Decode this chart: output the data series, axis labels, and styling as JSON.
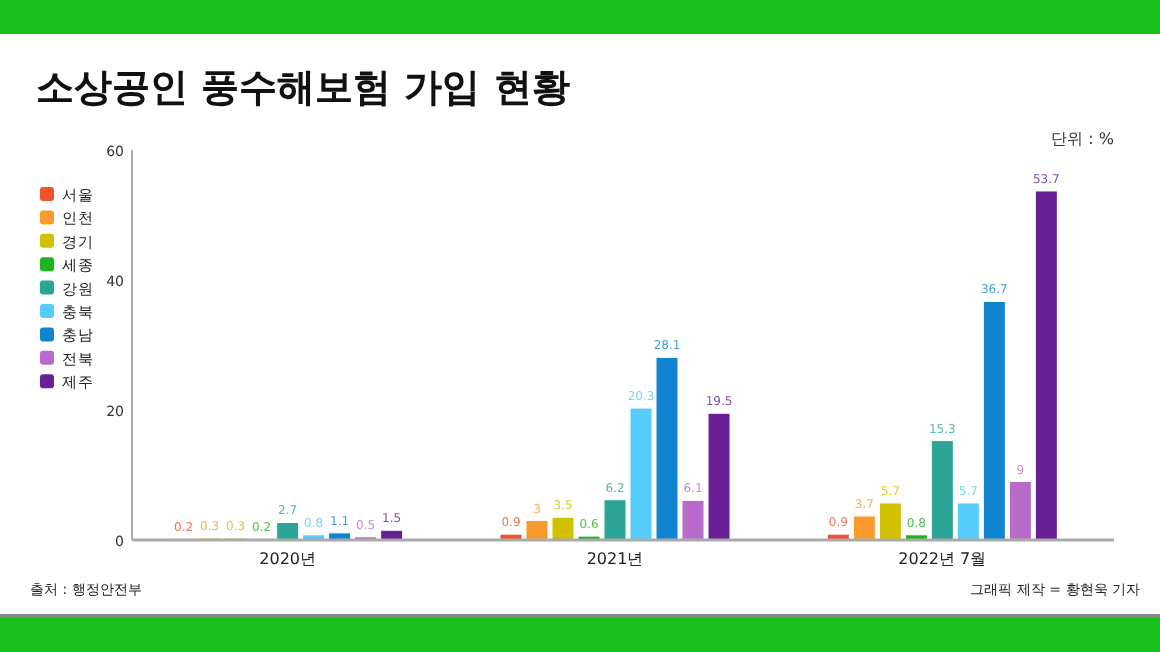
{
  "chart_data": {
    "type": "bar",
    "title": "소상공인 풍수해보험 가입 현황",
    "ylabel": "단위 : %",
    "categories": [
      "2020년",
      "2021년",
      "2022년 7월"
    ],
    "series": [
      {
        "name": "서울",
        "color": "#f0532e",
        "values": [
          0.2,
          0.9,
          0.9
        ]
      },
      {
        "name": "인천",
        "color": "#f99b2c",
        "values": [
          0.3,
          3,
          3.7
        ]
      },
      {
        "name": "경기",
        "color": "#d2c100",
        "values": [
          0.3,
          3.5,
          5.7
        ]
      },
      {
        "name": "세종",
        "color": "#1db41d",
        "values": [
          0.2,
          0.6,
          0.8
        ]
      },
      {
        "name": "강원",
        "color": "#2ca597",
        "values": [
          2.7,
          6.2,
          15.3
        ]
      },
      {
        "name": "충북",
        "color": "#55ccf9",
        "values": [
          0.8,
          20.3,
          5.7
        ]
      },
      {
        "name": "충남",
        "color": "#1184d0",
        "values": [
          1.1,
          28.1,
          36.7
        ]
      },
      {
        "name": "전북",
        "color": "#b86bcb",
        "values": [
          0.5,
          6.1,
          9
        ]
      },
      {
        "name": "제주",
        "color": "#672095",
        "values": [
          1.5,
          19.5,
          53.7
        ]
      }
    ],
    "ylim": [
      0,
      60
    ],
    "yticks": [
      0,
      20,
      40,
      60
    ],
    "grid": false,
    "legend": "left",
    "data_labels": true,
    "annotations": [
      "출처 : 행정안전부",
      "그래픽 제작 = 황현욱 기자"
    ]
  }
}
